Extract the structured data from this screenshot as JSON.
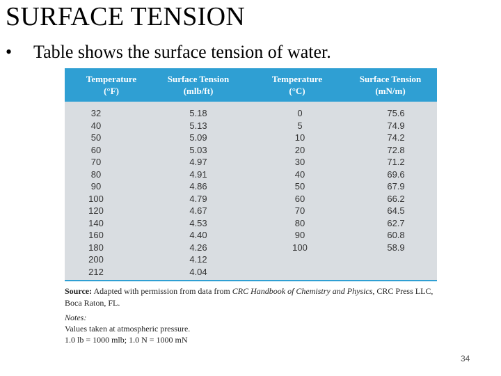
{
  "slide": {
    "title": "SURFACE TENSION",
    "bullet_symbol": "•",
    "bullet_text": "Table shows the surface tension of water.",
    "page_number": "34"
  },
  "table": {
    "header": [
      {
        "line1": "Temperature",
        "line2": "(°F)"
      },
      {
        "line1": "Surface Tension",
        "line2": "(mlb/ft)"
      },
      {
        "line1": "Temperature",
        "line2": "(°C)"
      },
      {
        "line1": "Surface Tension",
        "line2": "(mN/m)"
      }
    ],
    "col_f": [
      "32",
      "40",
      "50",
      "60",
      "70",
      "80",
      "90",
      "100",
      "120",
      "140",
      "160",
      "180",
      "200",
      "212"
    ],
    "col_mlb": [
      "5.18",
      "5.13",
      "5.09",
      "5.03",
      "4.97",
      "4.91",
      "4.86",
      "4.79",
      "4.67",
      "4.53",
      "4.40",
      "4.26",
      "4.12",
      "4.04"
    ],
    "col_c": [
      "0",
      "5",
      "10",
      "20",
      "30",
      "40",
      "50",
      "60",
      "70",
      "80",
      "90",
      "100"
    ],
    "col_mn": [
      "75.6",
      "74.9",
      "74.2",
      "72.8",
      "71.2",
      "69.6",
      "67.9",
      "66.2",
      "64.5",
      "62.7",
      "60.8",
      "58.9"
    ]
  },
  "source": {
    "label": "Source:",
    "text_before": " Adapted with permission from data from ",
    "italic": "CRC Handbook of Chemistry and Physics",
    "text_after": ", CRC Press LLC, Boca Raton, FL."
  },
  "notes": {
    "heading": "Notes:",
    "line1": "Values taken at atmospheric pressure.",
    "line2": "1.0 lb  =  1000 mlb;  1.0 N  =  1000 mN"
  },
  "colors": {
    "header_bg": "#2f9fd3",
    "body_bg": "#d9dde1"
  }
}
